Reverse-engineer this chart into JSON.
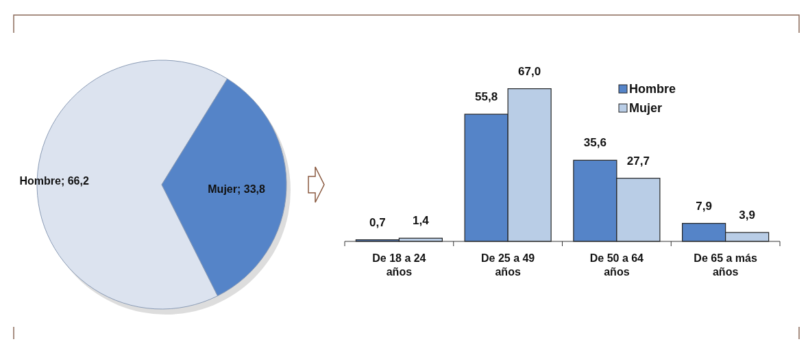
{
  "chart_data": [
    {
      "type": "pie",
      "categories": [
        "Hombre",
        "Mujer"
      ],
      "values": [
        66.2,
        33.8
      ],
      "colors": [
        "#dce3ef",
        "#5584c8"
      ],
      "value_labels": [
        "66,2",
        "33,8"
      ]
    },
    {
      "type": "bar",
      "categories": [
        "De 18 a 24 años",
        "De 25 a 49 años",
        "De 50 a 64 años",
        "De 65 a más años"
      ],
      "legend": "top right",
      "series": [
        {
          "name": "Hombre",
          "color": "#5584c8",
          "values": [
            0.7,
            55.8,
            35.6,
            7.9
          ],
          "value_labels": [
            "0,7",
            "55,8",
            "35,6",
            "7,9"
          ]
        },
        {
          "name": "Mujer",
          "color": "#b9cde6",
          "values": [
            1.4,
            67.0,
            27.7,
            3.9
          ],
          "value_labels": [
            "1,4",
            "67,0",
            "27,7",
            "3,9"
          ]
        }
      ]
    }
  ]
}
